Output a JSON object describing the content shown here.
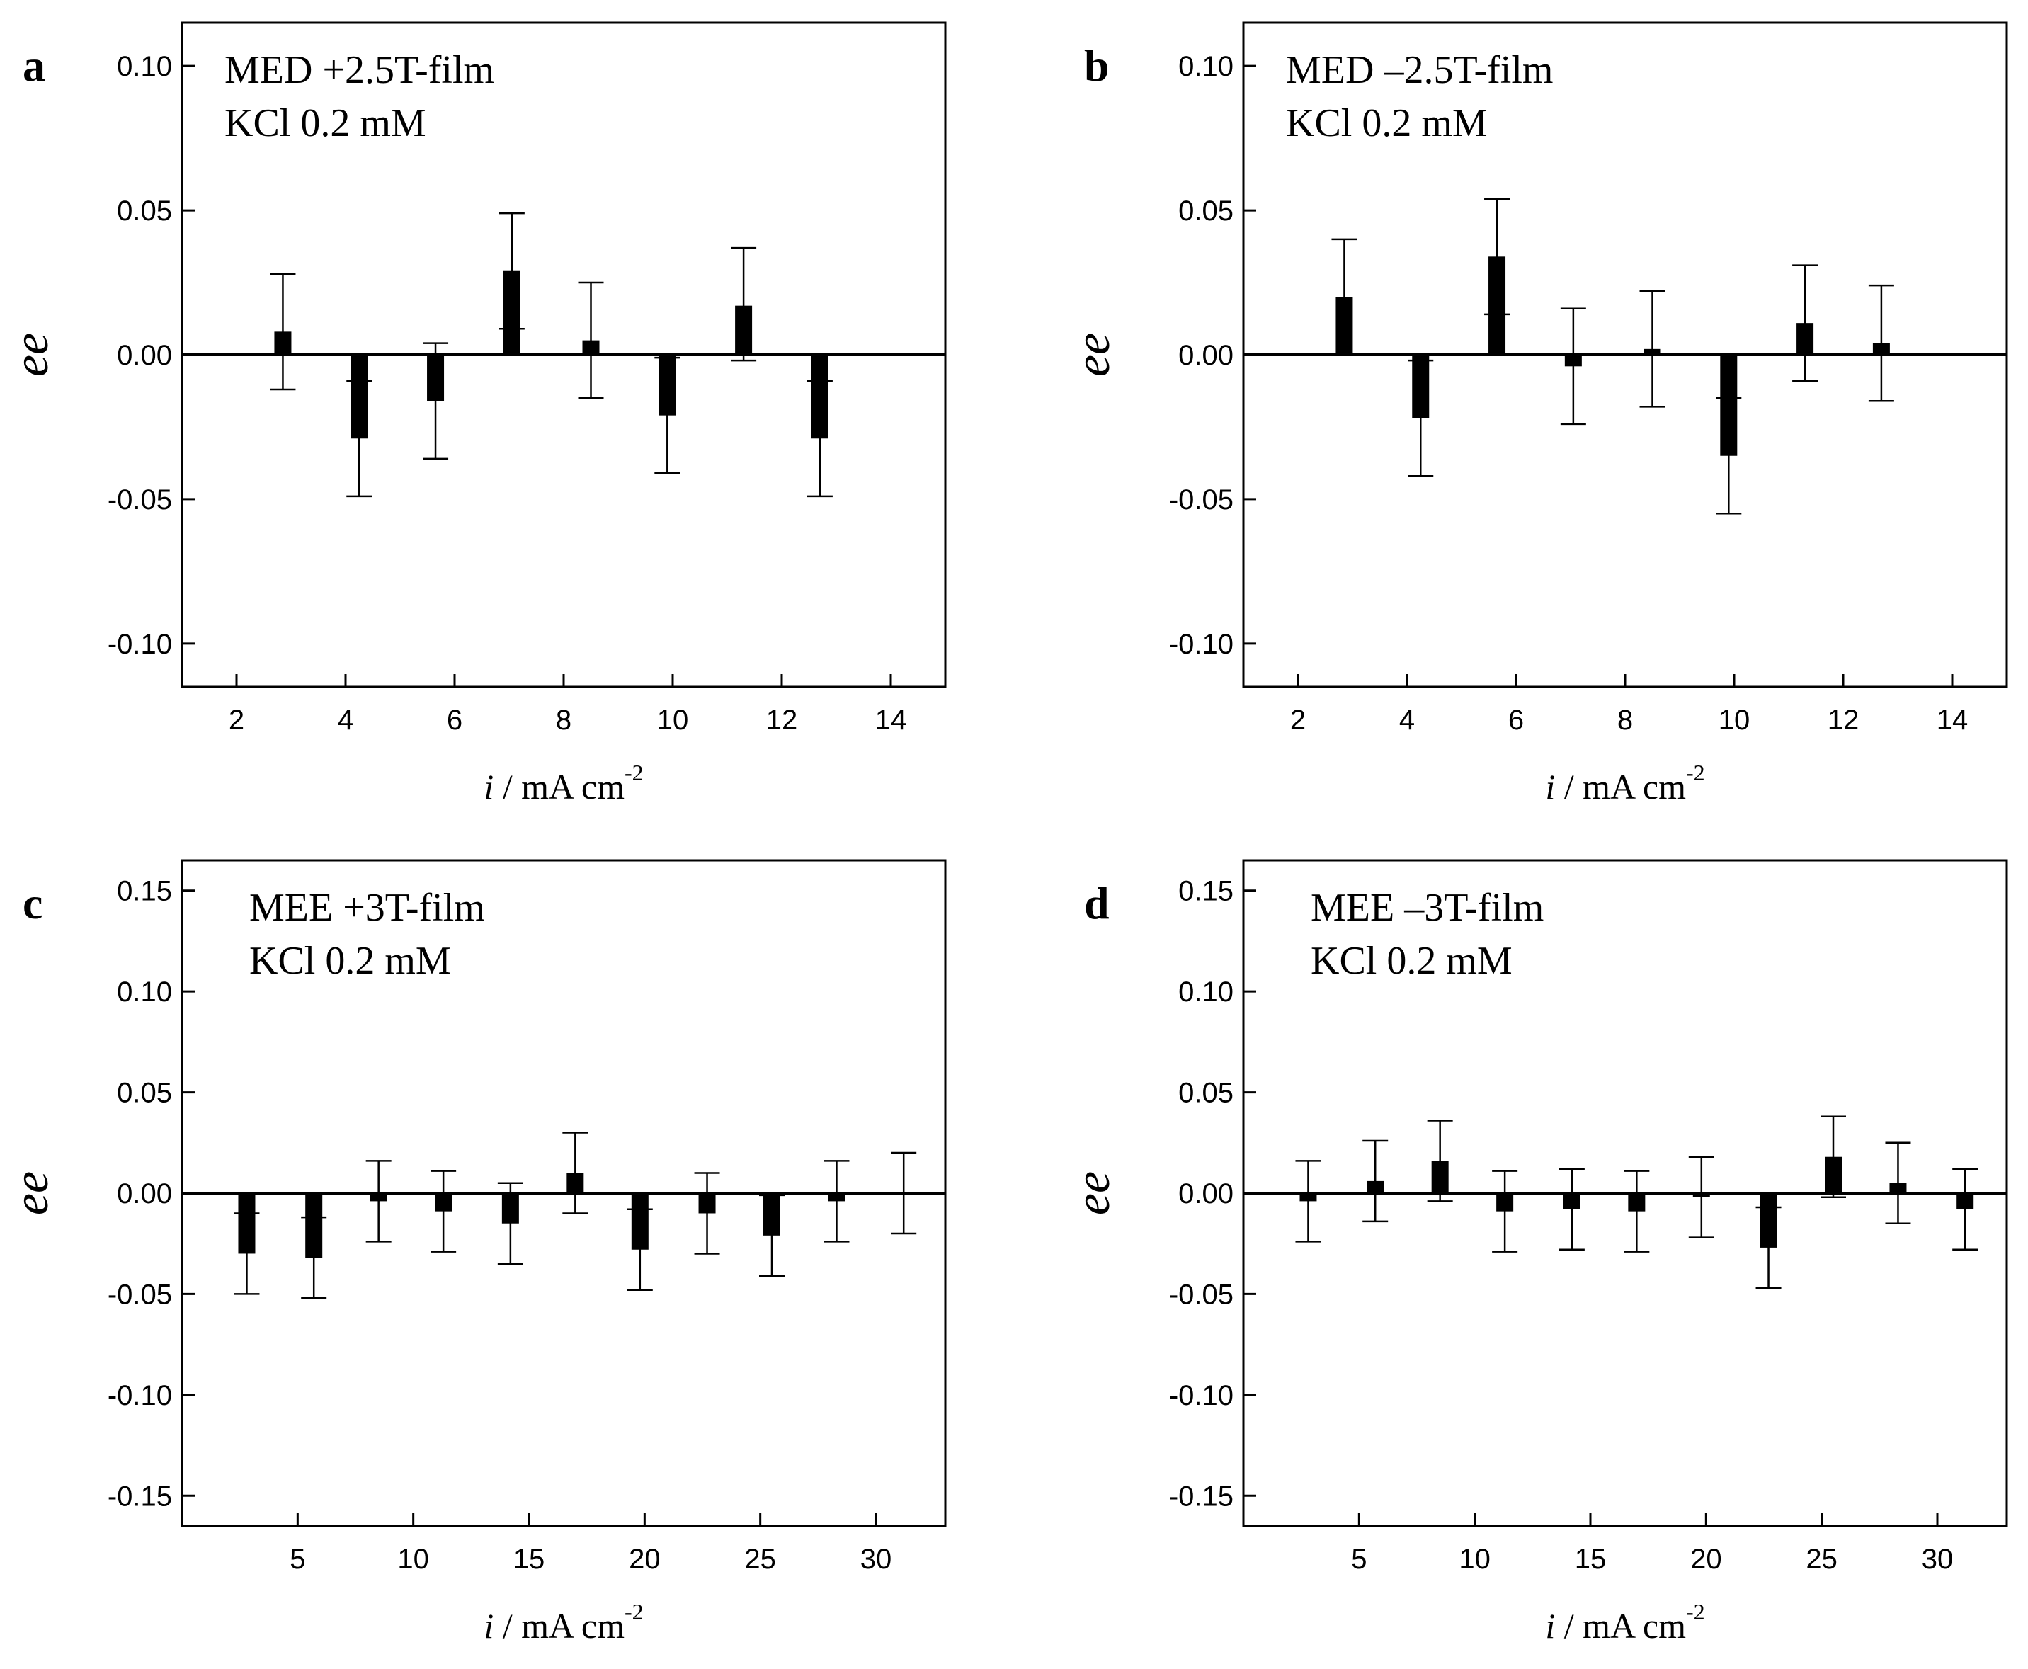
{
  "chart_data": [
    {
      "type": "bar",
      "panel": "a",
      "annotations": [
        "MED +2.5T-film",
        "KCl 0.2 mM"
      ],
      "ylabel": "ee",
      "xlabel_var": "i",
      "xlabel_unit": " / mA cm",
      "xlabel_sup": "-2",
      "xlim": [
        1,
        15
      ],
      "ylim": [
        -0.115,
        0.115
      ],
      "xticks": [
        2,
        4,
        6,
        8,
        10,
        12,
        14
      ],
      "yticks": [
        0.1,
        0.05,
        0.0,
        -0.05,
        -0.1
      ],
      "ytick_labels": [
        "0.10",
        "0.05",
        "0.00",
        "-0.05",
        "-0.10"
      ],
      "series": [
        {
          "name": "ee",
          "x": [
            2.85,
            4.25,
            5.65,
            7.05,
            8.5,
            9.9,
            11.3,
            12.7
          ],
          "values": [
            0.008,
            -0.029,
            -0.016,
            0.029,
            0.005,
            -0.021,
            0.017,
            -0.029
          ],
          "err_low": [
            -0.012,
            -0.049,
            -0.036,
            0.009,
            -0.015,
            -0.041,
            -0.002,
            -0.049
          ],
          "err_high": [
            0.028,
            -0.009,
            0.004,
            0.049,
            0.025,
            -0.001,
            0.037,
            -0.009
          ]
        }
      ]
    },
    {
      "type": "bar",
      "panel": "b",
      "annotations": [
        "MED –2.5T-film",
        "KCl 0.2 mM"
      ],
      "ylabel": "ee",
      "xlabel_var": "i",
      "xlabel_unit": " / mA cm",
      "xlabel_sup": "-2",
      "xlim": [
        1,
        15
      ],
      "ylim": [
        -0.115,
        0.115
      ],
      "xticks": [
        2,
        4,
        6,
        8,
        10,
        12,
        14
      ],
      "yticks": [
        0.1,
        0.05,
        0.0,
        -0.05,
        -0.1
      ],
      "ytick_labels": [
        "0.10",
        "0.05",
        "0.00",
        "-0.05",
        "-0.10"
      ],
      "series": [
        {
          "name": "ee",
          "x": [
            2.85,
            4.25,
            5.65,
            7.05,
            8.5,
            9.9,
            11.3,
            12.7
          ],
          "values": [
            0.02,
            -0.022,
            0.034,
            -0.004,
            0.002,
            -0.035,
            0.011,
            0.004
          ],
          "err_low": [
            0.0,
            -0.042,
            0.014,
            -0.024,
            -0.018,
            -0.055,
            -0.009,
            -0.016
          ],
          "err_high": [
            0.04,
            -0.002,
            0.054,
            0.016,
            0.022,
            -0.015,
            0.031,
            0.024
          ]
        }
      ]
    },
    {
      "type": "bar",
      "panel": "c",
      "annotations": [
        "MEE +3T-film",
        "KCl 0.2 mM"
      ],
      "ylabel": "ee",
      "xlabel_var": "i",
      "xlabel_unit": " / mA cm",
      "xlabel_sup": "-2",
      "xlim": [
        0,
        33
      ],
      "ylim": [
        -0.165,
        0.165
      ],
      "xticks": [
        5,
        10,
        15,
        20,
        25,
        30
      ],
      "yticks": [
        0.15,
        0.1,
        0.05,
        0.0,
        -0.05,
        -0.1,
        -0.15
      ],
      "ytick_labels": [
        "0.15",
        "0.10",
        "0.05",
        "0.00",
        "-0.05",
        "-0.10",
        "-0.15"
      ],
      "series": [
        {
          "name": "ee",
          "x": [
            2.8,
            5.7,
            8.5,
            11.3,
            14.2,
            17.0,
            19.8,
            22.7,
            25.5,
            28.3,
            31.2
          ],
          "values": [
            -0.03,
            -0.032,
            -0.004,
            -0.009,
            -0.015,
            0.01,
            -0.028,
            -0.01,
            -0.021,
            -0.004,
            0.0
          ],
          "err_low": [
            -0.05,
            -0.052,
            -0.024,
            -0.029,
            -0.035,
            -0.01,
            -0.048,
            -0.03,
            -0.041,
            -0.024,
            -0.02
          ],
          "err_high": [
            -0.01,
            -0.012,
            0.016,
            0.011,
            0.005,
            0.03,
            -0.008,
            0.01,
            -0.001,
            0.016,
            0.02
          ]
        }
      ]
    },
    {
      "type": "bar",
      "panel": "d",
      "annotations": [
        "MEE –3T-film",
        "KCl 0.2 mM"
      ],
      "ylabel": "ee",
      "xlabel_var": "i",
      "xlabel_unit": " / mA cm",
      "xlabel_sup": "-2",
      "xlim": [
        0,
        33
      ],
      "ylim": [
        -0.165,
        0.165
      ],
      "xticks": [
        5,
        10,
        15,
        20,
        25,
        30
      ],
      "yticks": [
        0.15,
        0.1,
        0.05,
        0.0,
        -0.05,
        -0.1,
        -0.15
      ],
      "ytick_labels": [
        "0.15",
        "0.10",
        "0.05",
        "0.00",
        "-0.05",
        "-0.10",
        "-0.15"
      ],
      "series": [
        {
          "name": "ee",
          "x": [
            2.8,
            5.7,
            8.5,
            11.3,
            14.2,
            17.0,
            19.8,
            22.7,
            25.5,
            28.3,
            31.2
          ],
          "values": [
            -0.004,
            0.006,
            0.016,
            -0.009,
            -0.008,
            -0.009,
            -0.002,
            -0.027,
            0.018,
            0.005,
            -0.008
          ],
          "err_low": [
            -0.024,
            -0.014,
            -0.004,
            -0.029,
            -0.028,
            -0.029,
            -0.022,
            -0.047,
            -0.002,
            -0.015,
            -0.028
          ],
          "err_high": [
            0.016,
            0.026,
            0.036,
            0.011,
            0.012,
            0.011,
            0.018,
            -0.007,
            0.038,
            0.025,
            0.012
          ]
        }
      ]
    }
  ]
}
